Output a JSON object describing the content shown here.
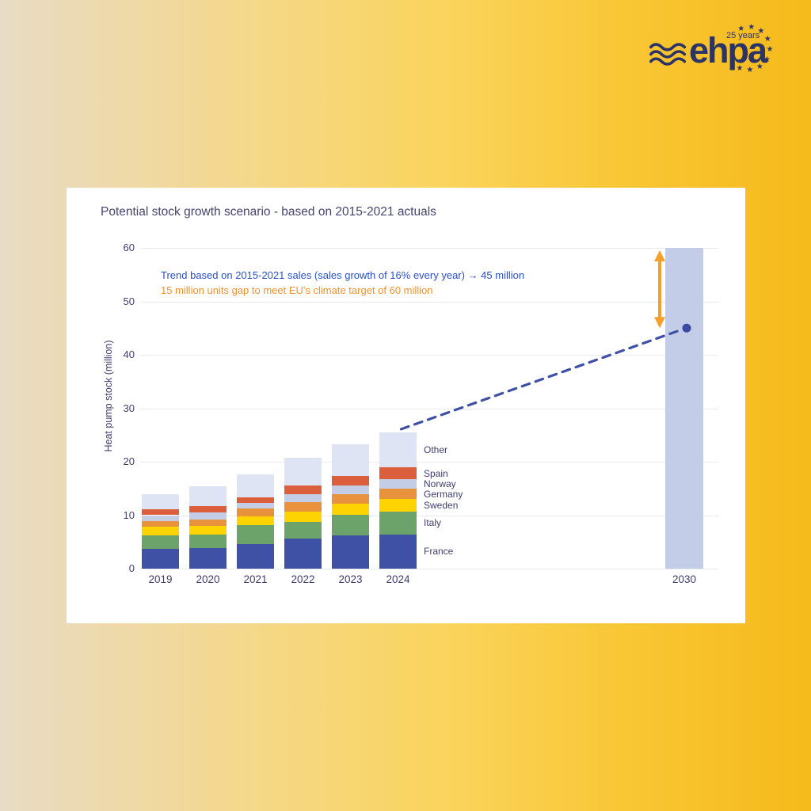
{
  "logo": {
    "brand": "ehpa",
    "badge": "25 years",
    "star_glyph": "★",
    "star_count": 9,
    "color": "#2c3467"
  },
  "chart": {
    "title": "Potential stock growth scenario - based on 2015-2021 actuals",
    "annotation_trend": "Trend based on 2015-2021 sales (sales growth of 16% every year) → 45 million",
    "annotation_gap": "15 million units gap to meet EU's climate target of 60 million",
    "annotation_trend_color": "#2b50c5",
    "annotation_gap_color": "#f0922e"
  },
  "chart_data": {
    "type": "bar",
    "stacked": true,
    "title": "Potential stock growth scenario - based on 2015-2021 actuals",
    "xlabel": "",
    "ylabel": "Heat pump stock (million)",
    "ylim": [
      0,
      60
    ],
    "yticks": [
      0,
      10,
      20,
      30,
      40,
      50,
      60
    ],
    "grid": true,
    "categories": [
      "2019",
      "2020",
      "2021",
      "2022",
      "2023",
      "2024"
    ],
    "series": [
      {
        "name": "France",
        "color": "#3f51a5",
        "values": [
          3.7,
          3.9,
          4.6,
          5.7,
          6.2,
          6.4
        ]
      },
      {
        "name": "Italy",
        "color": "#6ba36b",
        "values": [
          2.5,
          2.4,
          3.6,
          3.1,
          3.9,
          4.3
        ]
      },
      {
        "name": "Sweden",
        "color": "#fdd401",
        "values": [
          1.6,
          1.7,
          1.6,
          1.9,
          2.0,
          2.4
        ]
      },
      {
        "name": "Germany",
        "color": "#e8923d",
        "values": [
          1.1,
          1.2,
          1.4,
          1.7,
          1.8,
          1.8
        ]
      },
      {
        "name": "Norway",
        "color": "#c3cde6",
        "values": [
          1.1,
          1.3,
          1.1,
          1.6,
          1.7,
          1.8
        ]
      },
      {
        "name": "Spain",
        "color": "#dc5f3d",
        "values": [
          1.1,
          1.2,
          1.1,
          1.5,
          1.8,
          2.2
        ]
      },
      {
        "name": "Other",
        "color": "#dfe4f4",
        "values": [
          2.8,
          3.7,
          4.3,
          5.2,
          5.9,
          6.6
        ]
      }
    ],
    "totals": [
      13.9,
      15.4,
      17.7,
      20.7,
      23.3,
      25.5
    ],
    "legend_order_top_to_bottom": [
      "Other",
      "Spain",
      "Norway",
      "Germany",
      "Sweden",
      "Italy",
      "France"
    ],
    "legend_position": "right-of-last-bar",
    "target_bar": {
      "category": "2030",
      "value": 60,
      "color": "#c3cde8"
    },
    "trend_line": {
      "from_category": "2024",
      "from_value": 25.5,
      "to_category": "2030",
      "to_value": 45,
      "style": "dashed",
      "color": "#3f51a5"
    },
    "trend_point": {
      "category": "2030",
      "value": 45,
      "color": "#3a4aa0"
    },
    "gap_arrow": {
      "category": "2030",
      "from_value": 60,
      "to_value": 45,
      "color": "#f5a02b"
    }
  }
}
